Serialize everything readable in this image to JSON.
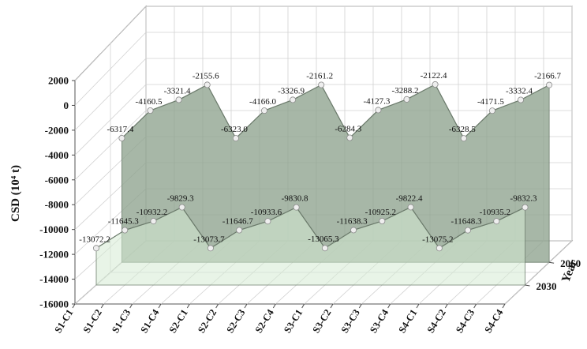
{
  "chart_data": {
    "type": "area",
    "projection": "3d",
    "ylabel": "CSD (10⁴ t)",
    "zlabel": "Year",
    "categories": [
      "S1-C1",
      "S1-C2",
      "S1-C3",
      "S1-C4",
      "S2-C1",
      "S2-C2",
      "S2-C3",
      "S2-C4",
      "S3-C1",
      "S3-C2",
      "S3-C3",
      "S3-C4",
      "S4-C1",
      "S4-C2",
      "S4-C3",
      "S4-C4"
    ],
    "depth_categories": [
      "2030",
      "2060"
    ],
    "yticks": [
      "2000",
      "0",
      "-2000",
      "-4000",
      "-6000",
      "-8000",
      "-10000",
      "-12000",
      "-14000",
      "-16000"
    ],
    "ylim": [
      -16000,
      2000
    ],
    "grid": true,
    "series": [
      {
        "name": "2060",
        "color": "#8ea38e",
        "labels_visible": [
          "-6317.4",
          "-4160.5",
          "-3321.4",
          "-2155.6",
          "-6323.0",
          "-4166.0",
          "-3326.9",
          "-2161.2",
          "-6284.3",
          "-4127.3",
          "-3288.2",
          "-2122.4",
          "-6328.5",
          "-4171.5",
          "-3332.4",
          "-2166.7"
        ],
        "values": [
          -6317.4,
          -4160.5,
          -3321.4,
          -2155.6,
          -6323.0,
          -4166.0,
          -3326.9,
          -2161.2,
          -6284.3,
          -4127.3,
          -3288.2,
          -2122.4,
          -6328.5,
          -4171.5,
          -3332.4,
          -2166.7
        ]
      },
      {
        "name": "2030",
        "color": "#d6ebd4",
        "labels_visible": [
          "-13072.2",
          "-11645.3",
          "-10932.2",
          "-9829.3",
          "-13073.7",
          "-11646.7",
          "-10933.6",
          "-9830.8",
          "-13065.3",
          "-11638.3",
          "-10925.2",
          "-9822.4",
          "-13075.2",
          "-11648.3",
          "-10935.2",
          "-9832.3"
        ],
        "values": [
          -13072.2,
          -11645.3,
          -10932.2,
          -9829.3,
          -13073.7,
          -11646.7,
          -10933.6,
          -9830.8,
          -13065.3,
          -11638.3,
          -10925.2,
          -9822.4,
          -13075.2,
          -11648.3,
          -10935.2,
          -9832.3
        ]
      }
    ]
  }
}
